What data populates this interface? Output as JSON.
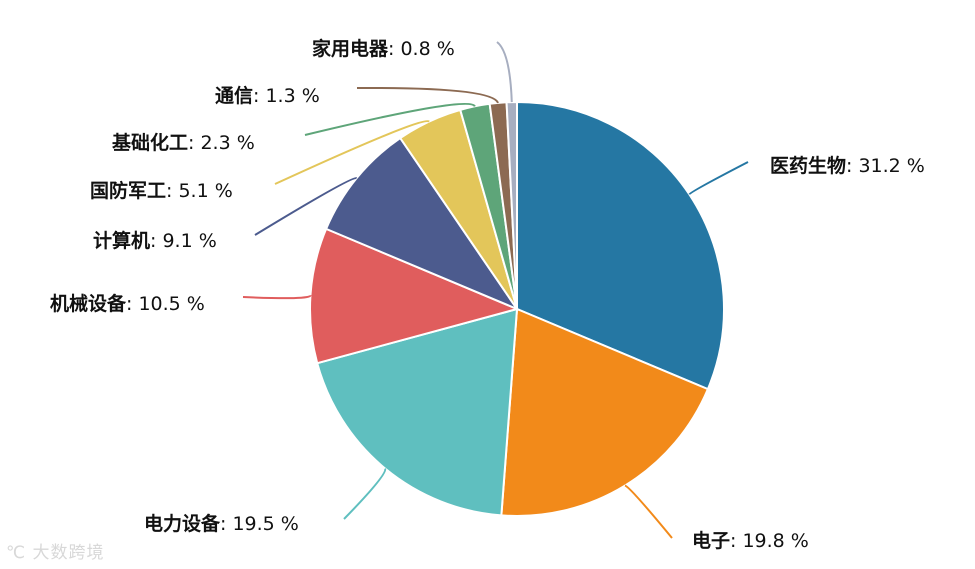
{
  "chart_data": {
    "type": "pie",
    "unit": "%",
    "slices": [
      {
        "label": "医药生物",
        "value": 31.2,
        "color": "#2577a3"
      },
      {
        "label": "电子",
        "value": 19.8,
        "color": "#f28a1a"
      },
      {
        "label": "电力设备",
        "value": 19.5,
        "color": "#5fbfbf"
      },
      {
        "label": "机械设备",
        "value": 10.5,
        "color": "#e05d5d"
      },
      {
        "label": "计算机",
        "value": 9.1,
        "color": "#4c5b8e"
      },
      {
        "label": "国防军工",
        "value": 5.1,
        "color": "#e3c65a"
      },
      {
        "label": "基础化工",
        "value": 2.3,
        "color": "#5ea579"
      },
      {
        "label": "通信",
        "value": 1.3,
        "color": "#8c6a52"
      },
      {
        "label": "家用电器",
        "value": 0.8,
        "color": "#a7aec0"
      }
    ]
  },
  "watermark": {
    "text": "大数跨境",
    "icon": "logo-icon"
  }
}
